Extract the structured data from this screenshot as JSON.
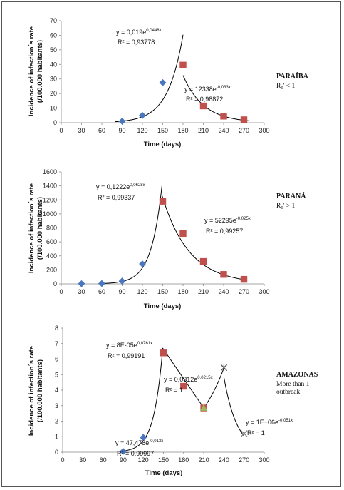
{
  "chart_data": [
    {
      "type": "scatter",
      "id": "paraiba",
      "xlabel": "Time (days)",
      "ylabel": [
        "Incidence of infection´s rate",
        "(/100.000 habitants)"
      ],
      "xlim": [
        0,
        300
      ],
      "ylim": [
        0,
        70
      ],
      "x_ticks": [
        "0",
        "30",
        "60",
        "90",
        "120",
        "150",
        "180",
        "210",
        "240",
        "270",
        "300"
      ],
      "y_ticks": [
        "0",
        "10",
        "20",
        "30",
        "40",
        "50",
        "60",
        "70"
      ],
      "series": [
        {
          "color": "#4a76c0",
          "marker": "diamond",
          "points": [
            [
              90,
              1
            ],
            [
              120,
              5
            ],
            [
              150,
              27.5
            ]
          ]
        },
        {
          "color": "#c0504d",
          "marker": "square",
          "points": [
            [
              180,
              39.5
            ],
            [
              210,
              11.5
            ],
            [
              240,
              4.5
            ],
            [
              270,
              2
            ]
          ]
        }
      ],
      "trendlines": [
        {
          "type": "exp",
          "a": 0.019,
          "b": 0.0448,
          "x_from": 80,
          "x_to": 180
        },
        {
          "type": "exp",
          "a": 12338,
          "b": -0.033,
          "x_from": 180,
          "x_to": 277
        }
      ],
      "annotations": [
        {
          "base": "y = 0,019e",
          "exp": "0,0448x",
          "r2": "R² = 0,93778"
        },
        {
          "base": "y = 12338e",
          "exp": "-0,033x",
          "r2": "R² = 0,98872"
        }
      ],
      "side_title": "PARAÍBA",
      "side_sub": [
        "R₀' < 1"
      ]
    },
    {
      "type": "scatter",
      "id": "parana",
      "xlabel": "Time (days)",
      "ylabel": [
        "Incidence of infection´s rate",
        "(/100.000 habitants)"
      ],
      "xlim": [
        0,
        300
      ],
      "ylim": [
        0,
        1600
      ],
      "x_ticks": [
        "0",
        "30",
        "60",
        "90",
        "120",
        "150",
        "180",
        "210",
        "240",
        "270",
        "300"
      ],
      "y_ticks": [
        "0",
        "200",
        "400",
        "600",
        "800",
        "1000",
        "1200",
        "1400",
        "1600"
      ],
      "series": [
        {
          "color": "#4a76c0",
          "marker": "diamond",
          "points": [
            [
              30,
              2
            ],
            [
              60,
              5
            ],
            [
              90,
              40
            ],
            [
              120,
              285
            ]
          ]
        },
        {
          "color": "#c0504d",
          "marker": "square",
          "points": [
            [
              150,
              1180
            ],
            [
              180,
              720
            ],
            [
              210,
              320
            ],
            [
              240,
              135
            ],
            [
              270,
              65
            ]
          ]
        }
      ],
      "trendlines": [
        {
          "type": "exp",
          "a": 0.1222,
          "b": 0.0628,
          "x_from": 55,
          "x_to": 149
        },
        {
          "type": "exp",
          "a": 52295,
          "b": -0.025,
          "x_from": 149,
          "x_to": 275
        }
      ],
      "annotations": [
        {
          "base": "y = 0,1222e",
          "exp": "0,0628x",
          "r2": "R² = 0,99337"
        },
        {
          "base": "y = 52295e",
          "exp": "-0,025x",
          "r2": "R² = 0,99257"
        }
      ],
      "side_title": "PARANÁ",
      "side_sub": [
        "R₀' > 1"
      ]
    },
    {
      "type": "scatter",
      "id": "amazonas",
      "xlabel": "Time (days)",
      "ylabel": [
        "Incidence of infection´s rate",
        "(/100.000 habitants)"
      ],
      "xlim": [
        0,
        300
      ],
      "ylim": [
        0,
        8
      ],
      "x_ticks": [
        "0",
        "30",
        "60",
        "90",
        "120",
        "150",
        "180",
        "210",
        "240",
        "270",
        "300"
      ],
      "y_ticks": [
        "0",
        "1",
        "2",
        "3",
        "4",
        "5",
        "6",
        "7",
        "8"
      ],
      "series": [
        {
          "color": "#4a76c0",
          "marker": "diamond",
          "points": [
            [
              90,
              0.05
            ],
            [
              120,
              0.95
            ]
          ]
        },
        {
          "color": "#c0504d",
          "marker": "square",
          "points": [
            [
              150,
              6.4
            ],
            [
              180,
              4.25
            ],
            [
              210,
              2.85
            ]
          ]
        },
        {
          "color": "#9bbb59",
          "marker": "triangle",
          "points": [
            [
              210,
              2.85
            ]
          ]
        },
        {
          "color": "#555555",
          "marker": "star",
          "points": [
            [
              240,
              5.45
            ]
          ]
        },
        {
          "color": "#777777",
          "marker": "x",
          "points": [
            [
              270,
              1.2
            ]
          ]
        }
      ],
      "trendlines": [
        {
          "type": "exp",
          "a": 8e-05,
          "b": 0.0761,
          "x_from": 85,
          "x_to": 149
        },
        {
          "type": "line",
          "points": [
            [
              149,
              6.7
            ],
            [
              210,
              2.85
            ]
          ]
        },
        {
          "type": "exp",
          "a": 0.0312,
          "b": 0.0215,
          "x_from": 210,
          "x_to": 240
        },
        {
          "type": "exp",
          "a": 1000000,
          "b": -0.051,
          "x_from": 240,
          "x_to": 270
        }
      ],
      "annotations": [
        {
          "base": "y = 8E-05e",
          "exp": "0,0761x",
          "r2": "R² = 0,99191"
        },
        {
          "base": "y = 0,0312e",
          "exp": "0,0215x",
          "r2": "R² = 1"
        },
        {
          "base": "y = 1E+06e",
          "exp": "-0,051x",
          "r2": "R² = 1"
        },
        {
          "base": "y = 47,478e",
          "exp": "-0,013x",
          "r2": "R² = 0,99997"
        }
      ],
      "side_title": "AMAZONAS",
      "side_sub": [
        "More than 1",
        "outbreak"
      ]
    }
  ]
}
